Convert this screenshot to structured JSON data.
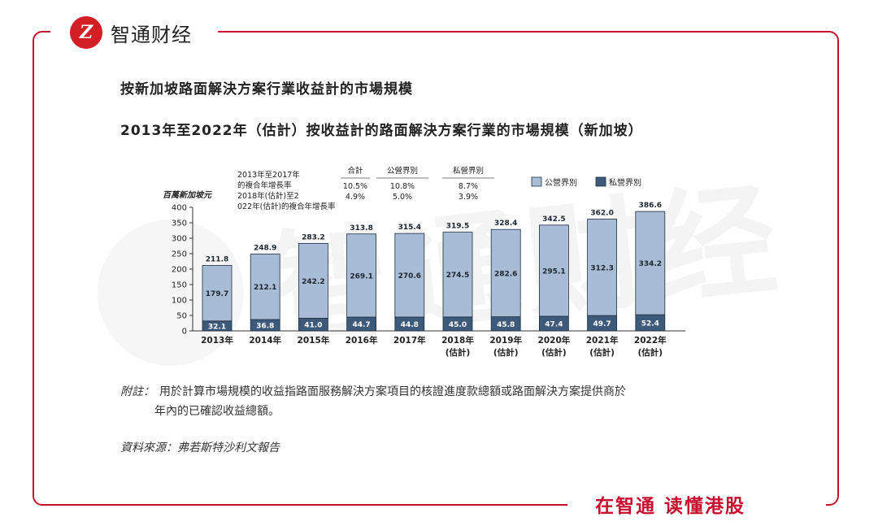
{
  "brand": {
    "logo_glyph": "Z",
    "name": "智通财经",
    "slogan": "在智通 读懂港股",
    "accent": "#c8102e"
  },
  "titles": {
    "main": "按新加坡路面解決方案行業收益計的市場規模",
    "chart": "2013年至2022年（估計）按收益計的路面解決方案行業的市場規模（新加坡）"
  },
  "footnote": {
    "label": "附註：",
    "line1": "用於計算市場規模的收益指路面服務解決方案項目的核證進度款總額或路面解決方案提供商於",
    "line2": "年內的已確認收益總額。"
  },
  "source": "資料來源：弗若斯特沙利文報告",
  "watermark": "智通财经",
  "chart_data": {
    "type": "bar",
    "stacked": true,
    "ylabel": "百萬新加坡元",
    "ylim": [
      0,
      400
    ],
    "yticks": [
      0,
      50,
      100,
      150,
      200,
      250,
      300,
      350,
      400
    ],
    "categories": [
      [
        "2013年"
      ],
      [
        "2014年"
      ],
      [
        "2015年"
      ],
      [
        "2016年"
      ],
      [
        "2017年"
      ],
      [
        "2018年",
        "(估計)"
      ],
      [
        "2019年",
        "(估計)"
      ],
      [
        "2020年",
        "(估計)"
      ],
      [
        "2021年",
        "(估計)"
      ],
      [
        "2022年",
        "(估計)"
      ]
    ],
    "series": [
      {
        "name": "私營界別",
        "color": "#3d5a7a",
        "values": [
          32.1,
          36.8,
          41.0,
          44.7,
          44.8,
          45.0,
          45.8,
          47.4,
          49.7,
          52.4
        ]
      },
      {
        "name": "公營界別",
        "color": "#a9bcd6",
        "values": [
          179.7,
          212.1,
          242.2,
          269.1,
          270.6,
          274.5,
          282.6,
          295.1,
          312.3,
          334.2
        ]
      }
    ],
    "totals": [
      211.8,
      248.9,
      283.2,
      313.8,
      315.4,
      319.5,
      328.4,
      342.5,
      362.0,
      386.6
    ],
    "cagr_table": {
      "row_labels": [
        "2013年至2017年的複合年增長率",
        "2018年(估計)至2022年(估計)的複合年增長率"
      ],
      "headers": [
        "合計",
        "公營界別",
        "私營界別"
      ],
      "rows": [
        [
          "10.5%",
          "10.8%",
          "8.7%"
        ],
        [
          "4.9%",
          "5.0%",
          "3.9%"
        ]
      ]
    },
    "legend": [
      "公營界別",
      "私營界別"
    ]
  }
}
